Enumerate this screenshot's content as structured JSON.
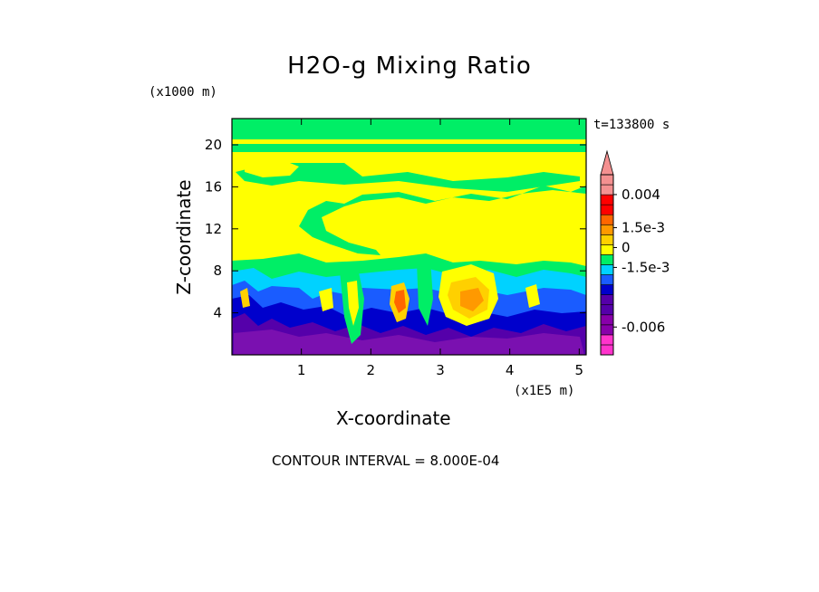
{
  "chart_data": {
    "type": "heatmap",
    "title": "H2O-g Mixing Ratio",
    "xlabel": "X-coordinate",
    "ylabel": "Z-coordinate",
    "x_unit": "(x1E5 m)",
    "y_unit": "(x1000 m)",
    "time_label": "t=133800 s",
    "footer": "CONTOUR INTERVAL = 8.000E-04",
    "xlim": [
      0,
      5.1
    ],
    "ylim": [
      0,
      22.5
    ],
    "x_ticks": [
      {
        "value": 1,
        "label": "1"
      },
      {
        "value": 2,
        "label": "2"
      },
      {
        "value": 3,
        "label": "3"
      },
      {
        "value": 4,
        "label": "4"
      },
      {
        "value": 5,
        "label": "5"
      }
    ],
    "y_ticks": [
      {
        "value": 4,
        "label": "4"
      },
      {
        "value": 8,
        "label": "8"
      },
      {
        "value": 12,
        "label": "12"
      },
      {
        "value": 16,
        "label": "16"
      },
      {
        "value": 20,
        "label": "20"
      }
    ],
    "colorbar": {
      "levels": [
        "#ff33cc",
        "#ff33cc",
        "#8800aa",
        "#8800aa",
        "#5500aa",
        "#5500aa",
        "#0000cc",
        "#1a5cff",
        "#00d2ff",
        "#00ee66",
        "#ffff00",
        "#ffd000",
        "#ff9900",
        "#ff6600",
        "#ff0000",
        "#ff0000",
        "#f49090",
        "#f49090"
      ],
      "labels": [
        {
          "text": "0.004",
          "value": 0.004
        },
        {
          "text": "1.5e-3",
          "value": 0.0015
        },
        {
          "text": "0",
          "value": 0
        },
        {
          "text": "-1.5e-3",
          "value": -0.0015
        },
        {
          "text": "-0.006",
          "value": -0.006
        }
      ],
      "min": -0.0081,
      "max": 0.0055
    }
  }
}
